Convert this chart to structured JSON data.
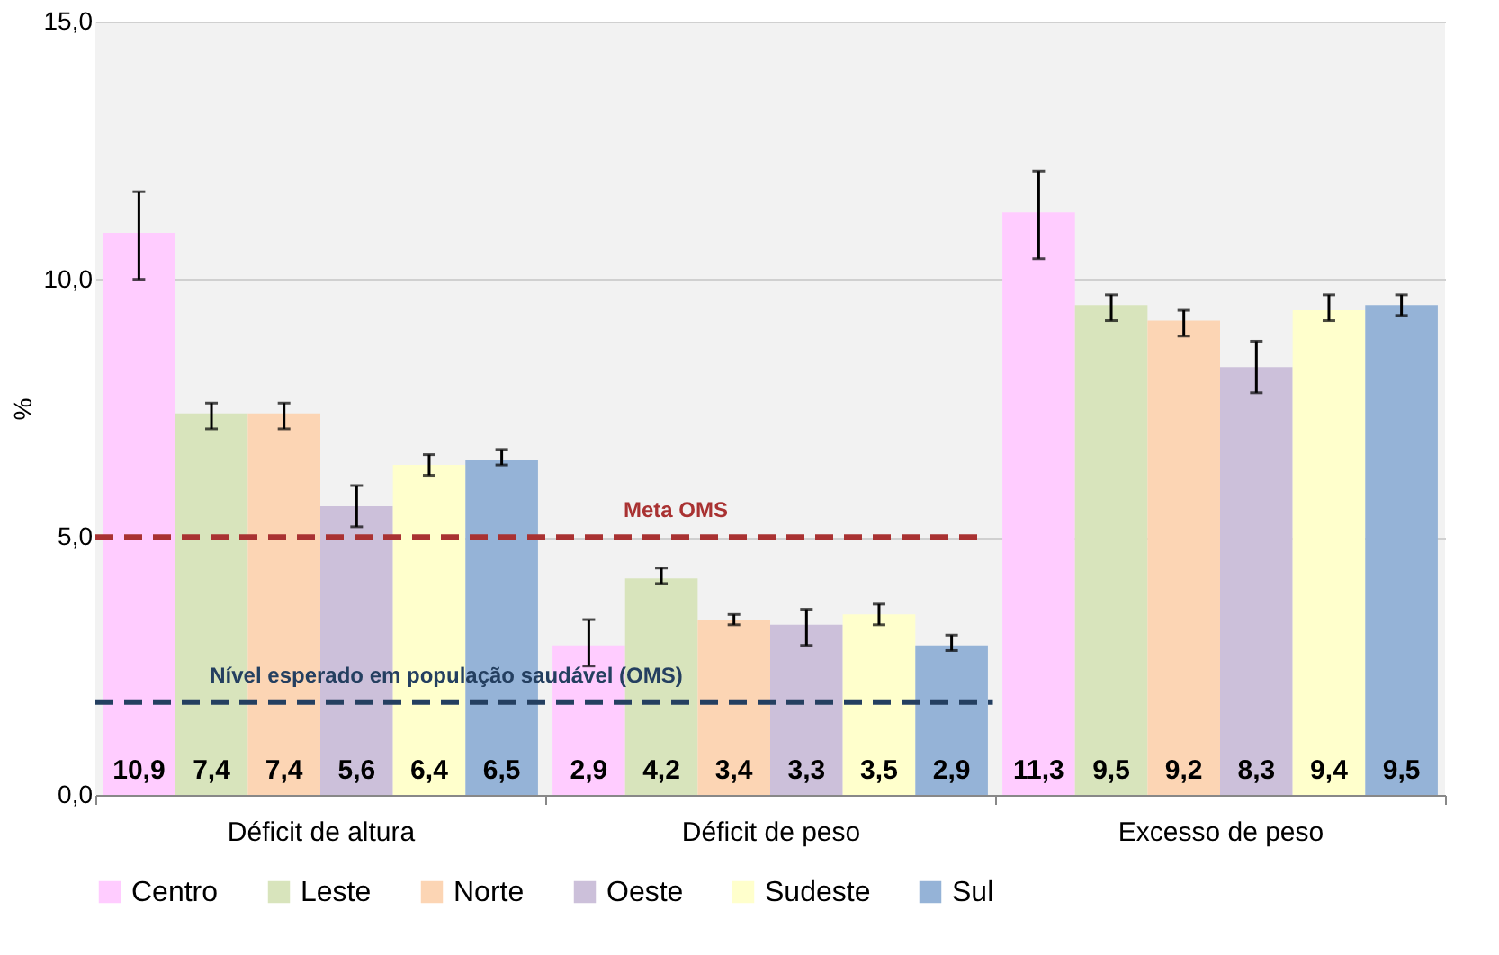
{
  "chart_data": {
    "type": "bar",
    "ylabel": "%",
    "categories": [
      "Déficit de altura",
      "Déficit de peso",
      "Excesso de peso"
    ],
    "series": [
      {
        "name": "Centro",
        "color": "#ffccff",
        "values": [
          10.9,
          2.9,
          11.3
        ],
        "value_labels": [
          "10,9",
          "2,9",
          "11,3"
        ],
        "errors": [
          [
            10.0,
            11.7
          ],
          [
            2.5,
            3.4
          ],
          [
            10.4,
            12.1
          ]
        ]
      },
      {
        "name": "Leste",
        "color": "#d8e4bc",
        "values": [
          7.4,
          4.2,
          9.5
        ],
        "value_labels": [
          "7,4",
          "4,2",
          "9,5"
        ],
        "errors": [
          [
            7.1,
            7.6
          ],
          [
            4.1,
            4.4
          ],
          [
            9.2,
            9.7
          ]
        ]
      },
      {
        "name": "Norte",
        "color": "#fcd5b4",
        "values": [
          7.4,
          3.4,
          9.2
        ],
        "value_labels": [
          "7,4",
          "3,4",
          "9,2"
        ],
        "errors": [
          [
            7.1,
            7.6
          ],
          [
            3.3,
            3.5
          ],
          [
            8.9,
            9.4
          ]
        ]
      },
      {
        "name": "Oeste",
        "color": "#ccc0da",
        "values": [
          5.6,
          3.3,
          8.3
        ],
        "value_labels": [
          "5,6",
          "3,3",
          "8,3"
        ],
        "errors": [
          [
            5.2,
            6.0
          ],
          [
            2.9,
            3.6
          ],
          [
            7.8,
            8.8
          ]
        ]
      },
      {
        "name": "Sudeste",
        "color": "#ffffcc",
        "values": [
          6.4,
          3.5,
          9.4
        ],
        "value_labels": [
          "6,4",
          "3,5",
          "9,4"
        ],
        "errors": [
          [
            6.2,
            6.6
          ],
          [
            3.3,
            3.7
          ],
          [
            9.2,
            9.7
          ]
        ]
      },
      {
        "name": "Sul",
        "color": "#95b3d7",
        "values": [
          6.5,
          2.9,
          9.5
        ],
        "value_labels": [
          "6,5",
          "2,9",
          "9,5"
        ],
        "errors": [
          [
            6.4,
            6.7
          ],
          [
            2.8,
            3.1
          ],
          [
            9.3,
            9.7
          ]
        ]
      }
    ],
    "ylim": [
      0,
      15
    ],
    "yticks": [
      {
        "value": 0,
        "label": "0,0"
      },
      {
        "value": 5,
        "label": "5,0"
      },
      {
        "value": 10,
        "label": "10,0"
      },
      {
        "value": 15,
        "label": "15,0"
      }
    ],
    "ref_lines": [
      {
        "axis": "y",
        "value": 5.0,
        "label": "Meta OMS",
        "color": "#a93232",
        "line_style": "dashed"
      },
      {
        "axis": "y",
        "value": 1.8,
        "label": "Nível esperado em população saudável (OMS)",
        "color": "#243f60",
        "line_style": "dashed"
      }
    ],
    "grid": "y",
    "legend": "bottom"
  }
}
